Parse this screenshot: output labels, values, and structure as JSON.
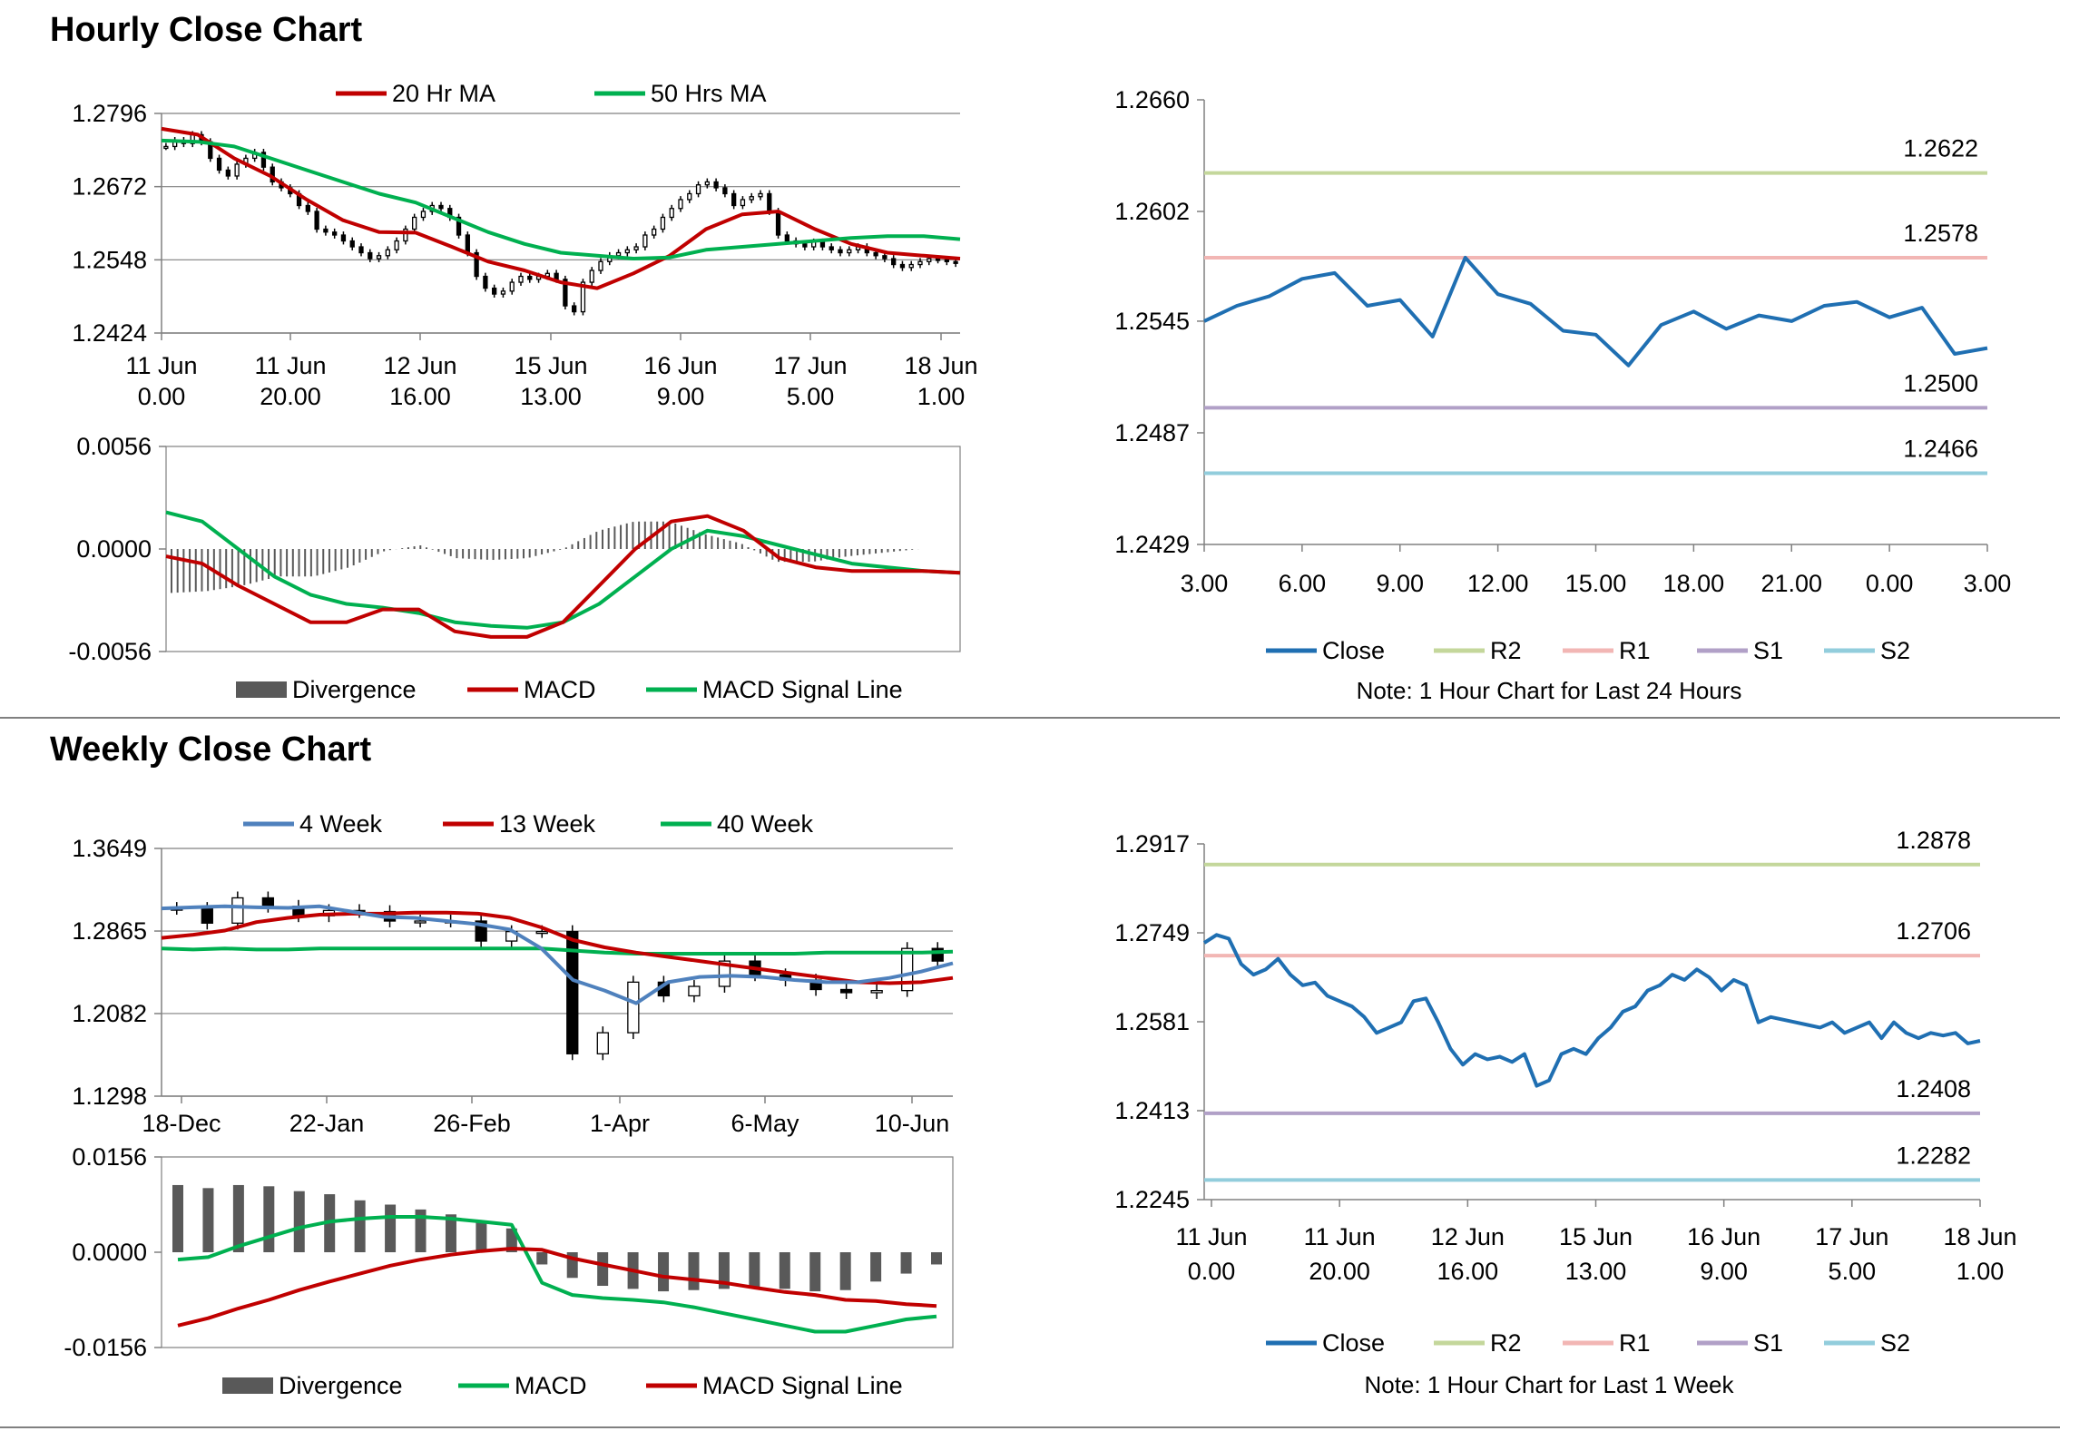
{
  "sections": {
    "hourly_title": "Hourly Close Chart",
    "weekly_title": "Weekly Close Chart"
  },
  "colors": {
    "red": "#c00000",
    "green": "#00b050",
    "blue_ma": "#4f81bd",
    "close_blue": "#1f6fb2",
    "bar_gray": "#595959",
    "r2": "#c4d79b",
    "r1": "#f2b6b4",
    "s1": "#b1a0c7",
    "s2": "#92cddc",
    "grid": "#808080"
  },
  "chart_data": [
    {
      "id": "hourly_price",
      "type": "candlestick",
      "yticks": [
        "1.2796",
        "1.2672",
        "1.2548",
        "1.2424"
      ],
      "ylim": [
        1.2424,
        1.2796
      ],
      "xticks": [
        [
          "11 Jun",
          "0.00"
        ],
        [
          "11 Jun",
          "20.00"
        ],
        [
          "12 Jun",
          "16.00"
        ],
        [
          "15 Jun",
          "13.00"
        ],
        [
          "16 Jun",
          "9.00"
        ],
        [
          "17 Jun",
          "5.00"
        ],
        [
          "18 Jun",
          "1.00"
        ]
      ],
      "legend": [
        "20 Hr MA",
        "50 Hrs MA"
      ],
      "series": [
        {
          "name": "20 Hr MA",
          "color": "#c00000",
          "values": [
            1.277,
            1.276,
            1.272,
            1.269,
            1.265,
            1.2615,
            1.2595,
            1.2594,
            1.257,
            1.2545,
            1.253,
            1.251,
            1.25,
            1.2525,
            1.2555,
            1.26,
            1.2625,
            1.263,
            1.26,
            1.2575,
            1.256,
            1.2555,
            1.255
          ]
        },
        {
          "name": "50 Hrs MA",
          "color": "#00b050",
          "values": [
            1.275,
            1.2748,
            1.274,
            1.272,
            1.27,
            1.268,
            1.266,
            1.2645,
            1.262,
            1.2595,
            1.2575,
            1.256,
            1.2555,
            1.255,
            1.2552,
            1.2565,
            1.257,
            1.2575,
            1.258,
            1.2585,
            1.2588,
            1.2588,
            1.2583
          ]
        }
      ],
      "candles": [
        1.274,
        1.275,
        1.2745,
        1.276,
        1.2748,
        1.272,
        1.27,
        1.269,
        1.271,
        1.272,
        1.273,
        1.2705,
        1.268,
        1.267,
        1.266,
        1.264,
        1.263,
        1.26,
        1.2595,
        1.259,
        1.258,
        1.257,
        1.256,
        1.255,
        1.2555,
        1.2565,
        1.258,
        1.26,
        1.262,
        1.263,
        1.264,
        1.2635,
        1.262,
        1.259,
        1.256,
        1.252,
        1.25,
        1.249,
        1.2495,
        1.251,
        1.252,
        1.2515,
        1.252,
        1.2525,
        1.2515,
        1.247,
        1.246,
        1.251,
        1.253,
        1.2545,
        1.2555,
        1.256,
        1.2565,
        1.257,
        1.259,
        1.26,
        1.262,
        1.2635,
        1.265,
        1.266,
        1.2675,
        1.268,
        1.267,
        1.266,
        1.264,
        1.265,
        1.2655,
        1.266,
        1.263,
        1.259,
        1.258,
        1.2575,
        1.257,
        1.2578,
        1.257,
        1.2565,
        1.256,
        1.2565,
        1.257,
        1.256,
        1.2555,
        1.255,
        1.254,
        1.2535,
        1.254,
        1.2545,
        1.255,
        1.2548,
        1.2545,
        1.2542
      ]
    },
    {
      "id": "hourly_macd",
      "type": "bar+line",
      "yticks": [
        "0.0056",
        "0.0000",
        "-0.0056"
      ],
      "ylim": [
        -0.0056,
        0.0056
      ],
      "legend": [
        "Divergence",
        "MACD",
        "MACD Signal Line"
      ],
      "series": [
        {
          "name": "MACD",
          "color": "#c00000",
          "values": [
            -0.0004,
            -0.0008,
            -0.002,
            -0.003,
            -0.004,
            -0.004,
            -0.0033,
            -0.0033,
            -0.0045,
            -0.0048,
            -0.0048,
            -0.004,
            -0.002,
            0.0,
            0.0015,
            0.0018,
            0.001,
            -0.0005,
            -0.001,
            -0.0012,
            -0.0012,
            -0.0012,
            -0.0013
          ]
        },
        {
          "name": "MACD Signal Line",
          "color": "#00b050",
          "values": [
            0.002,
            0.0015,
            0.0,
            -0.0015,
            -0.0025,
            -0.003,
            -0.0032,
            -0.0035,
            -0.004,
            -0.0042,
            -0.0043,
            -0.004,
            -0.003,
            -0.0015,
            0.0,
            0.001,
            0.0007,
            0.0002,
            -0.0003,
            -0.0008,
            -0.001,
            -0.0012,
            -0.0013
          ]
        },
        {
          "name": "Divergence",
          "color": "#595959",
          "values": [
            -0.0024,
            -0.0023,
            -0.002,
            -0.0015,
            -0.0015,
            -0.001,
            -0.0001,
            0.0002,
            -0.0005,
            -0.0006,
            -0.0005,
            0.0,
            0.001,
            0.0015,
            0.0015,
            0.0008,
            0.0003,
            -0.0007,
            -0.0007,
            -0.0004,
            -0.0002,
            0.0,
            0.0
          ]
        }
      ]
    },
    {
      "id": "hourly_close_24h",
      "type": "line",
      "yticks": [
        "1.2660",
        "1.2602",
        "1.2545",
        "1.2487",
        "1.2429"
      ],
      "ylim": [
        1.2429,
        1.266
      ],
      "xticks": [
        "3.00",
        "6.00",
        "9.00",
        "12.00",
        "15.00",
        "18.00",
        "21.00",
        "0.00",
        "3.00"
      ],
      "levels": [
        {
          "name": "R2",
          "value": 1.2622,
          "label": "1.2622",
          "color": "#c4d79b"
        },
        {
          "name": "R1",
          "value": 1.2578,
          "label": "1.2578",
          "color": "#f2b6b4"
        },
        {
          "name": "S1",
          "value": 1.25,
          "label": "1.2500",
          "color": "#b1a0c7"
        },
        {
          "name": "S2",
          "value": 1.2466,
          "label": "1.2466",
          "color": "#92cddc"
        }
      ],
      "series": [
        {
          "name": "Close",
          "color": "#1f6fb2",
          "values": [
            1.2545,
            1.2553,
            1.2558,
            1.2567,
            1.257,
            1.2553,
            1.2556,
            1.2537,
            1.2578,
            1.2559,
            1.2554,
            1.254,
            1.2538,
            1.2522,
            1.2543,
            1.255,
            1.2541,
            1.2548,
            1.2545,
            1.2553,
            1.2555,
            1.2547,
            1.2552,
            1.2528,
            1.2531
          ]
        }
      ],
      "legend": [
        "Close",
        "R2",
        "R1",
        "S1",
        "S2"
      ],
      "note": "Note: 1 Hour Chart for Last 24 Hours"
    },
    {
      "id": "weekly_price",
      "type": "candlestick",
      "yticks": [
        "1.3649",
        "1.2865",
        "1.2082",
        "1.1298"
      ],
      "ylim": [
        1.1298,
        1.3649
      ],
      "xticks": [
        "18-Dec",
        "22-Jan",
        "26-Feb",
        "1-Apr",
        "6-May",
        "10-Jun"
      ],
      "legend": [
        "4 Week",
        "13 Week",
        "40 Week"
      ],
      "series": [
        {
          "name": "4 Week",
          "color": "#4f81bd",
          "values": [
            1.308,
            1.309,
            1.31,
            1.309,
            1.3085,
            1.31,
            1.305,
            1.3,
            1.299,
            1.296,
            1.293,
            1.288,
            1.27,
            1.24,
            1.23,
            1.218,
            1.238,
            1.243,
            1.244,
            1.243,
            1.24,
            1.238,
            1.238,
            1.242,
            1.248,
            1.256
          ]
        },
        {
          "name": "13 Week",
          "color": "#c00000",
          "values": [
            1.28,
            1.283,
            1.287,
            1.295,
            1.299,
            1.302,
            1.303,
            1.303,
            1.304,
            1.304,
            1.303,
            1.299,
            1.29,
            1.278,
            1.271,
            1.266,
            1.262,
            1.258,
            1.254,
            1.25,
            1.246,
            1.242,
            1.238,
            1.237,
            1.238,
            1.242
          ]
        },
        {
          "name": "40 Week",
          "color": "#00b050",
          "values": [
            1.27,
            1.269,
            1.27,
            1.269,
            1.269,
            1.27,
            1.27,
            1.27,
            1.27,
            1.27,
            1.27,
            1.27,
            1.27,
            1.268,
            1.266,
            1.265,
            1.265,
            1.265,
            1.265,
            1.265,
            1.265,
            1.266,
            1.266,
            1.266,
            1.266,
            1.267
          ]
        }
      ],
      "candles": [
        1.308,
        1.294,
        1.318,
        1.31,
        1.301,
        1.306,
        1.305,
        1.296,
        1.296,
        1.296,
        1.277,
        1.286,
        1.286,
        1.17,
        1.19,
        1.238,
        1.225,
        1.234,
        1.258,
        1.245,
        1.24,
        1.231,
        1.228,
        1.23,
        1.27,
        1.258
      ]
    },
    {
      "id": "weekly_macd",
      "type": "bar+line",
      "yticks": [
        "0.0156",
        "0.0000",
        "-0.0156"
      ],
      "ylim": [
        -0.0156,
        0.0156
      ],
      "legend": [
        "Divergence",
        "MACD",
        "MACD Signal Line"
      ],
      "series": [
        {
          "name": "MACD",
          "color": "#00b050",
          "values": [
            -0.0012,
            -0.0008,
            0.001,
            0.0025,
            0.004,
            0.005,
            0.0055,
            0.0058,
            0.0058,
            0.0055,
            0.005,
            0.0045,
            -0.005,
            -0.007,
            -0.0075,
            -0.0078,
            -0.0082,
            -0.009,
            -0.01,
            -0.011,
            -0.012,
            -0.013,
            -0.013,
            -0.012,
            -0.011,
            -0.0105
          ]
        },
        {
          "name": "MACD Signal Line",
          "color": "#c00000",
          "values": [
            -0.012,
            -0.0108,
            -0.0092,
            -0.0078,
            -0.0062,
            -0.0048,
            -0.0035,
            -0.0022,
            -0.0012,
            -0.0004,
            0.0002,
            0.0006,
            0.0004,
            -0.001,
            -0.002,
            -0.003,
            -0.004,
            -0.0045,
            -0.005,
            -0.0058,
            -0.0065,
            -0.007,
            -0.0078,
            -0.008,
            -0.0085,
            -0.0088
          ]
        },
        {
          "name": "Divergence",
          "color": "#595959",
          "values": [
            0.011,
            0.0105,
            0.011,
            0.0108,
            0.01,
            0.0095,
            0.0085,
            0.0078,
            0.007,
            0.0062,
            0.005,
            0.0039,
            -0.002,
            -0.0042,
            -0.0055,
            -0.006,
            -0.0064,
            -0.0062,
            -0.006,
            -0.0058,
            -0.006,
            -0.0064,
            -0.0062,
            -0.0048,
            -0.0035,
            -0.002
          ]
        }
      ]
    },
    {
      "id": "weekly_close_1w",
      "type": "line",
      "yticks": [
        "1.2917",
        "1.2749",
        "1.2581",
        "1.2413",
        "1.2245"
      ],
      "ylim": [
        1.2245,
        1.2917
      ],
      "xticks": [
        [
          "11 Jun",
          "0.00"
        ],
        [
          "11 Jun",
          "20.00"
        ],
        [
          "12 Jun",
          "16.00"
        ],
        [
          "15 Jun",
          "13.00"
        ],
        [
          "16 Jun",
          "9.00"
        ],
        [
          "17 Jun",
          "5.00"
        ],
        [
          "18 Jun",
          "1.00"
        ]
      ],
      "levels": [
        {
          "name": "R2",
          "value": 1.2878,
          "label": "1.2878",
          "color": "#c4d79b"
        },
        {
          "name": "R1",
          "value": 1.2706,
          "label": "1.2706",
          "color": "#f2b6b4"
        },
        {
          "name": "S1",
          "value": 1.2408,
          "label": "1.2408",
          "color": "#b1a0c7"
        },
        {
          "name": "S2",
          "value": 1.2282,
          "label": "1.2282",
          "color": "#92cddc"
        }
      ],
      "series": [
        {
          "name": "Close",
          "color": "#1f6fb2",
          "values": [
            1.273,
            1.2745,
            1.2738,
            1.269,
            1.267,
            1.268,
            1.27,
            1.267,
            1.265,
            1.2655,
            1.263,
            1.262,
            1.261,
            1.259,
            1.256,
            1.257,
            1.258,
            1.262,
            1.2625,
            1.258,
            1.253,
            1.25,
            1.252,
            1.251,
            1.2515,
            1.2505,
            1.252,
            1.246,
            1.247,
            1.252,
            1.253,
            1.252,
            1.255,
            1.257,
            1.26,
            1.261,
            1.264,
            1.265,
            1.267,
            1.266,
            1.268,
            1.2665,
            1.264,
            1.266,
            1.265,
            1.258,
            1.259,
            1.2585,
            1.258,
            1.2575,
            1.257,
            1.258,
            1.256,
            1.257,
            1.258,
            1.255,
            1.258,
            1.256,
            1.255,
            1.256,
            1.2555,
            1.256,
            1.254,
            1.2545
          ]
        }
      ],
      "legend": [
        "Close",
        "R2",
        "R1",
        "S1",
        "S2"
      ],
      "note": "Note: 1 Hour Chart for Last 1 Week"
    }
  ]
}
